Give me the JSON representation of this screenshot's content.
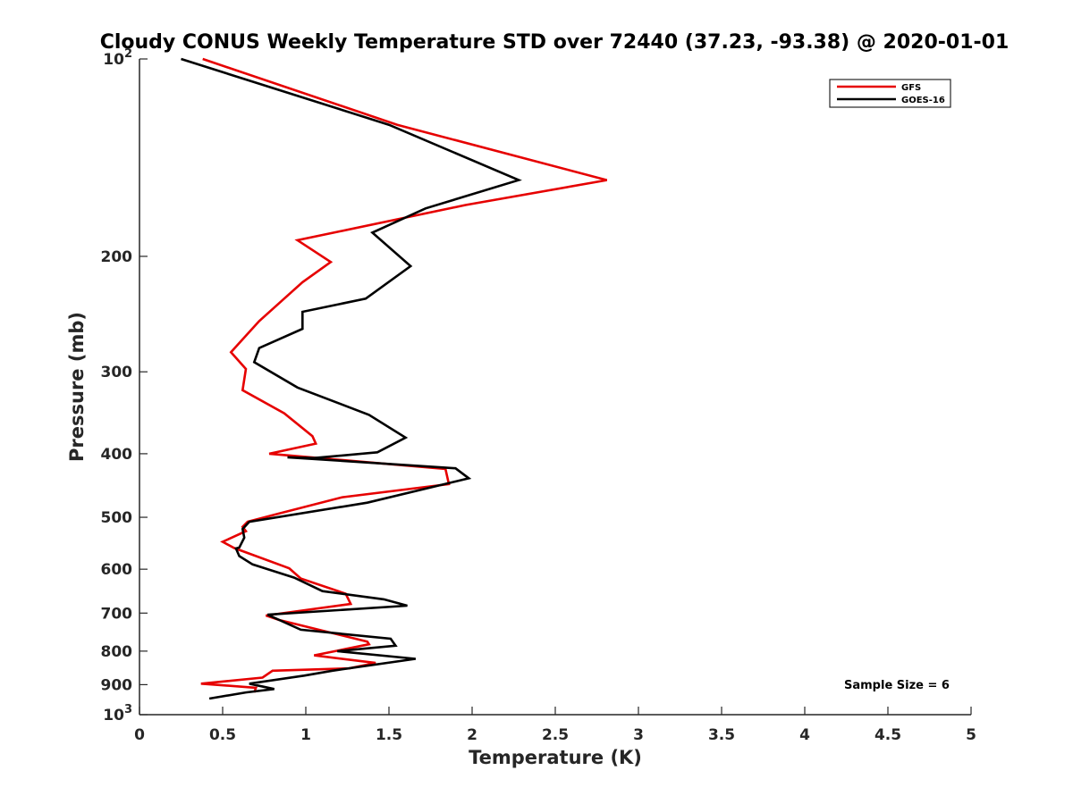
{
  "chart_data": {
    "type": "line",
    "title": "Cloudy CONUS Weekly Temperature STD over 72440 (37.23, -93.38) @ 2020-01-01",
    "xlabel": "Temperature (K)",
    "ylabel": "Pressure (mb)",
    "xlim": [
      0,
      5
    ],
    "ylim": [
      100,
      1000
    ],
    "y_scale": "log",
    "y_reversed": true,
    "grid": false,
    "legend_position": "top-right",
    "x_ticks": [
      "0",
      "0.5",
      "1",
      "1.5",
      "2",
      "2.5",
      "3",
      "3.5",
      "4",
      "4.5",
      "5"
    ],
    "x_tick_values": [
      0,
      0.5,
      1,
      1.5,
      2,
      2.5,
      3,
      3.5,
      4,
      4.5,
      5
    ],
    "y_ticks": [
      {
        "value": 100,
        "base": "10",
        "exp": "2"
      },
      {
        "value": 200,
        "base": "200",
        "exp": ""
      },
      {
        "value": 300,
        "base": "300",
        "exp": ""
      },
      {
        "value": 400,
        "base": "400",
        "exp": ""
      },
      {
        "value": 500,
        "base": "500",
        "exp": ""
      },
      {
        "value": 600,
        "base": "600",
        "exp": ""
      },
      {
        "value": 700,
        "base": "700",
        "exp": ""
      },
      {
        "value": 800,
        "base": "800",
        "exp": ""
      },
      {
        "value": 900,
        "base": "900",
        "exp": ""
      },
      {
        "value": 1000,
        "base": "10",
        "exp": "3"
      }
    ],
    "annotation": "Sample Size = 6",
    "series": [
      {
        "name": "GFS",
        "color": "#e60000",
        "x": [
          0.38,
          1.55,
          2.81,
          1.96,
          0.95,
          1.15,
          0.98,
          0.87,
          0.72,
          0.55,
          0.64,
          0.62,
          0.87,
          1.04,
          1.06,
          0.78,
          1.84,
          1.86,
          1.22,
          0.83,
          0.65,
          0.62,
          0.64,
          0.5,
          0.57,
          0.9,
          0.97,
          1.24,
          1.27,
          0.76,
          0.84,
          1.37,
          1.38,
          1.05,
          1.42,
          1.26,
          0.8,
          0.74,
          0.37,
          0.7,
          0.69
        ],
        "y": [
          100,
          126,
          153,
          167,
          189,
          204,
          219,
          232,
          251,
          280,
          297,
          320,
          347,
          376,
          386,
          400,
          422,
          445,
          466,
          494,
          508,
          517,
          525,
          545,
          557,
          598,
          620,
          654,
          678,
          706,
          717,
          774,
          781,
          812,
          834,
          850,
          857,
          878,
          897,
          910,
          925
        ]
      },
      {
        "name": "GOES-16",
        "color": "#000000",
        "x": [
          0.25,
          1.5,
          2.28,
          1.72,
          1.4,
          1.63,
          1.36,
          0.98,
          0.98,
          0.72,
          0.69,
          0.95,
          1.38,
          1.6,
          1.43,
          1.05,
          0.89,
          1.9,
          1.98,
          1.37,
          0.66,
          0.62,
          0.63,
          0.6,
          0.58,
          0.6,
          0.68,
          0.93,
          1.1,
          1.47,
          1.61,
          0.77,
          0.97,
          1.51,
          1.54,
          1.19,
          1.66,
          1.16,
          0.99,
          0.66,
          0.81,
          0.64,
          0.42
        ],
        "y": [
          100,
          126,
          153,
          169,
          184,
          207,
          232,
          243,
          258,
          276,
          290,
          317,
          349,
          378,
          398,
          406,
          405,
          421,
          436,
          475,
          508,
          521,
          537,
          556,
          558,
          573,
          590,
          618,
          648,
          667,
          682,
          704,
          742,
          766,
          785,
          800,
          822,
          857,
          872,
          897,
          914,
          925,
          945
        ]
      }
    ]
  }
}
